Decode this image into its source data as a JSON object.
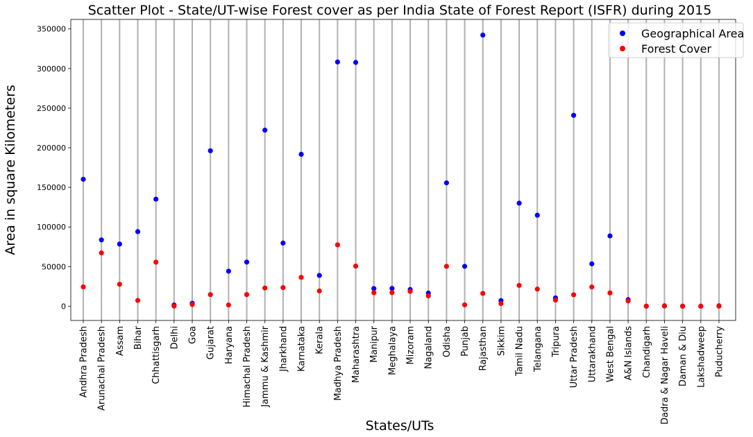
{
  "chart_data": {
    "type": "scatter",
    "title": "Scatter Plot - State/UT-wise Forest cover as per India State of Forest Report (ISFR) during 2015",
    "xlabel": "States/UTs",
    "ylabel": "Area in square Kilometers",
    "ylim": [
      -18000,
      362000
    ],
    "yticks": [
      0,
      50000,
      100000,
      150000,
      200000,
      250000,
      300000,
      350000
    ],
    "grid": "vertical lines at each category",
    "legend_position": "top-right",
    "categories": [
      "Andhra Pradesh",
      "Arunachal Pradesh",
      "Assam",
      "Bihar",
      "Chhattisgarh",
      "Delhi",
      "Goa",
      "Gujarat",
      "Haryana",
      "Himachal Pradesh",
      "Jammu & Kashmir",
      "Jharkhand",
      "Karnataka",
      "Kerala",
      "Madhya Pradesh",
      "Maharashtra",
      "Manipur",
      "Meghalaya",
      "Mizoram",
      "Nagaland",
      "Odisha",
      "Punjab",
      "Rajasthan",
      "Sikkim",
      "Tamil Nadu",
      "Telangana",
      "Tripura",
      "Uttar Pradesh",
      "Uttarakhand",
      "West Bengal",
      "A&N Islands",
      "Chandigarh",
      "Dadra & Nagar Haveli",
      "Daman & Diu",
      "Lakshadweep",
      "Puducherry"
    ],
    "series": [
      {
        "name": "Geographical Area",
        "color": "#0000ff",
        "values": [
          160205,
          83743,
          78438,
          94163,
          135191,
          1483,
          3702,
          196244,
          44212,
          55673,
          222236,
          79716,
          191791,
          38852,
          308252,
          307713,
          22327,
          22429,
          21081,
          16579,
          155707,
          50362,
          342239,
          7096,
          130060,
          114840,
          10486,
          240928,
          53483,
          88752,
          8249,
          114,
          491,
          111,
          30,
          490
        ]
      },
      {
        "name": "Forest Cover",
        "color": "#ff0000",
        "values": [
          24424,
          67248,
          27671,
          7288,
          55586,
          189,
          2219,
          14653,
          1584,
          14696,
          22988,
          23478,
          36421,
          19278,
          77462,
          50628,
          17083,
          17217,
          18748,
          12966,
          50354,
          1772,
          16171,
          3357,
          26281,
          21591,
          7811,
          14461,
          24240,
          16847,
          6711,
          22,
          207,
          9,
          27,
          50
        ]
      }
    ]
  }
}
